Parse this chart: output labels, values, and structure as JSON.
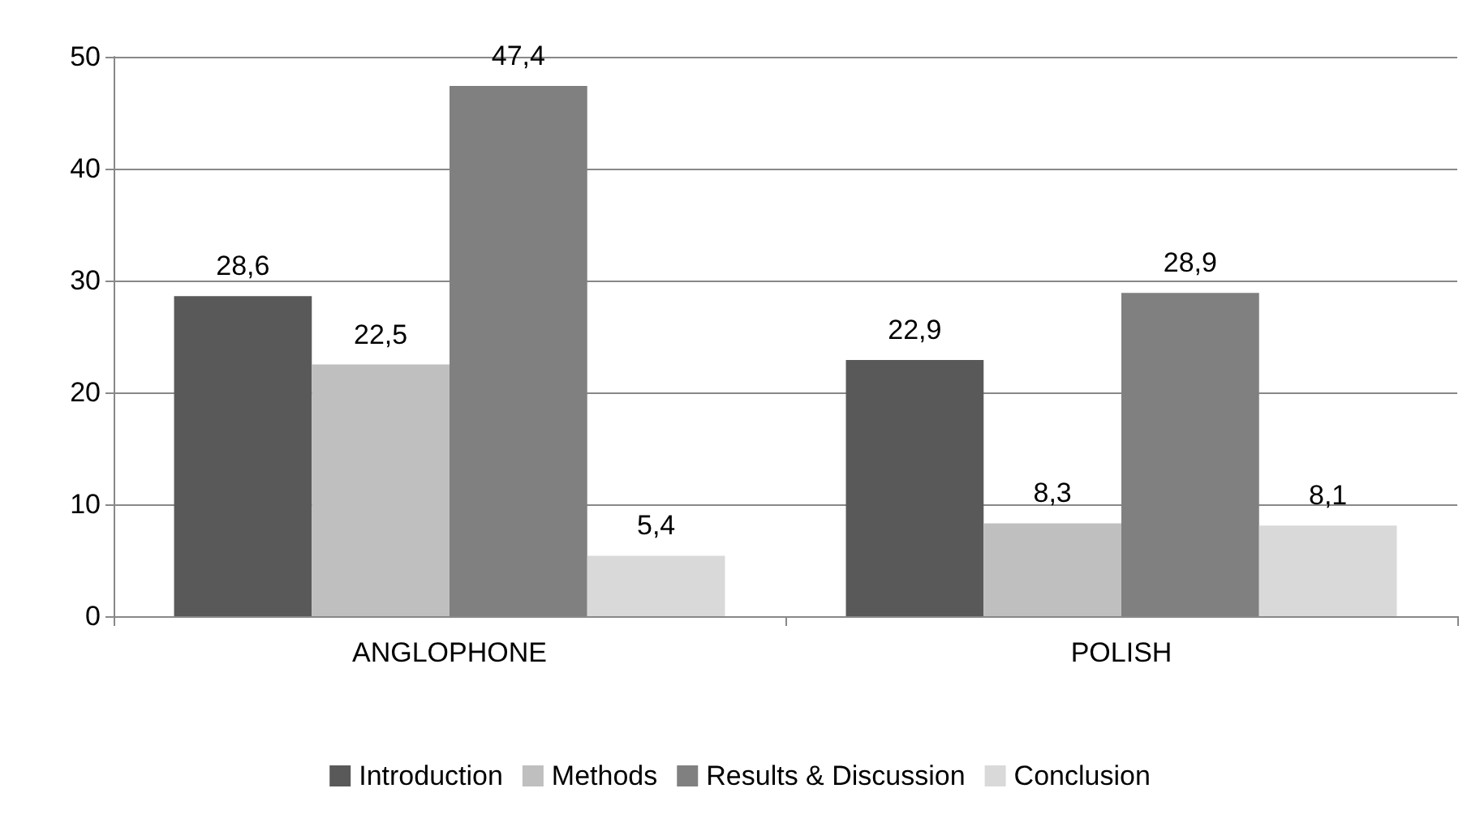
{
  "chart_data": {
    "type": "bar",
    "categories": [
      "ANGLOPHONE",
      "POLISH"
    ],
    "series": [
      {
        "name": "Introduction",
        "color": "#595959",
        "values": [
          28.6,
          22.9
        ],
        "value_labels": [
          "28,6",
          "22,9"
        ]
      },
      {
        "name": "Methods",
        "color": "#bfbfbf",
        "values": [
          22.5,
          8.3
        ],
        "value_labels": [
          "22,5",
          "8,3"
        ]
      },
      {
        "name": "Results & Discussion",
        "color": "#808080",
        "values": [
          47.4,
          28.9
        ],
        "value_labels": [
          "47,4",
          "28,9"
        ]
      },
      {
        "name": "Conclusion",
        "color": "#d9d9d9",
        "values": [
          5.4,
          8.1
        ],
        "value_labels": [
          "5,4",
          "8,1"
        ]
      }
    ],
    "ylim": [
      0,
      50
    ],
    "yticks": [
      0,
      10,
      20,
      30,
      40,
      50
    ],
    "grid": "y",
    "legend": "bottom"
  }
}
